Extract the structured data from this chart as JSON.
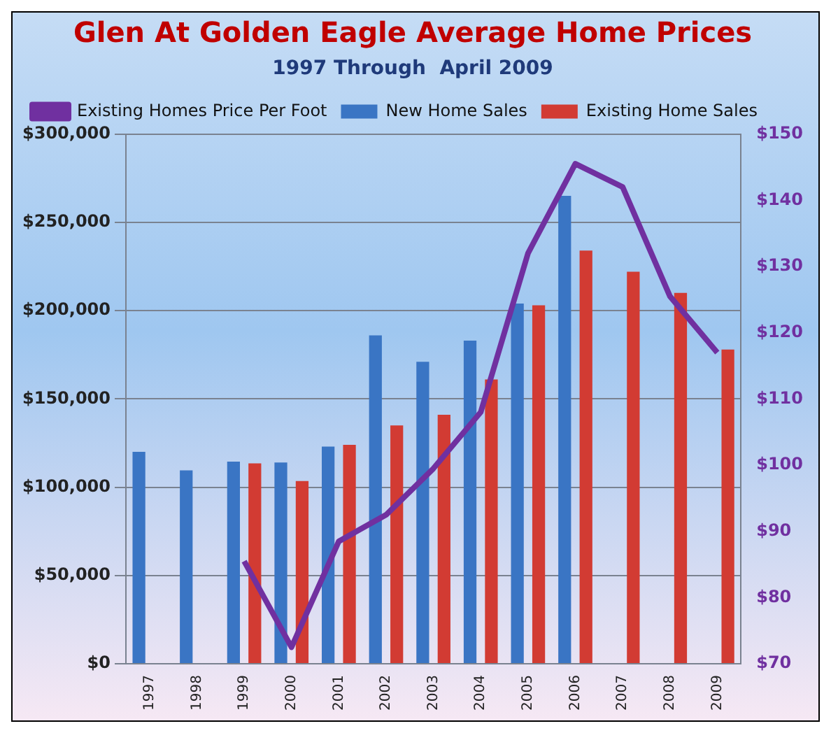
{
  "chart_data": {
    "type": "bar",
    "title": "Glen At Golden Eagle Average Home Prices",
    "subtitle": "1997 Through  April 2009",
    "categories": [
      "1997",
      "1998",
      "1999",
      "2000",
      "2001",
      "2002",
      "2003",
      "2004",
      "2005",
      "2006",
      "2007",
      "2008",
      "2009"
    ],
    "series": [
      {
        "name": "New Home Sales",
        "color": "#3a75c4",
        "values": [
          120000,
          109500,
          114500,
          114000,
          123000,
          186000,
          171000,
          183000,
          204000,
          265000,
          null,
          null,
          null
        ]
      },
      {
        "name": "Existing Home Sales",
        "color": "#d23b33",
        "values": [
          null,
          null,
          113500,
          103500,
          124000,
          135000,
          141000,
          161000,
          203000,
          234000,
          222000,
          210000,
          178000
        ]
      },
      {
        "name": "Existing Homes Price Per Foot",
        "type": "line",
        "axis": "y2",
        "color": "#7030a0",
        "values": [
          null,
          null,
          85.5,
          72.5,
          88.5,
          92.5,
          99.5,
          108,
          132,
          145.5,
          142,
          125.5,
          117
        ]
      }
    ],
    "ylim": [
      0,
      300000
    ],
    "yticks": [
      {
        "value": 0,
        "label": "$0"
      },
      {
        "value": 50000,
        "label": "$50,000"
      },
      {
        "value": 100000,
        "label": "$100,000"
      },
      {
        "value": 150000,
        "label": "$150,000"
      },
      {
        "value": 200000,
        "label": "$200,000"
      },
      {
        "value": 250000,
        "label": "$250,000"
      },
      {
        "value": 300000,
        "label": "$300,000"
      }
    ],
    "y2lim": [
      70,
      150
    ],
    "y2ticks": [
      {
        "value": 70,
        "label": "$70"
      },
      {
        "value": 80,
        "label": "$80"
      },
      {
        "value": 90,
        "label": "$90"
      },
      {
        "value": 100,
        "label": "$100"
      },
      {
        "value": 110,
        "label": "$110"
      },
      {
        "value": 120,
        "label": "$120"
      },
      {
        "value": 130,
        "label": "$130"
      },
      {
        "value": 140,
        "label": "$140"
      },
      {
        "value": 150,
        "label": "$150"
      }
    ],
    "grid": "y",
    "legend": "top left",
    "marker": "none",
    "line_style": "solid"
  }
}
